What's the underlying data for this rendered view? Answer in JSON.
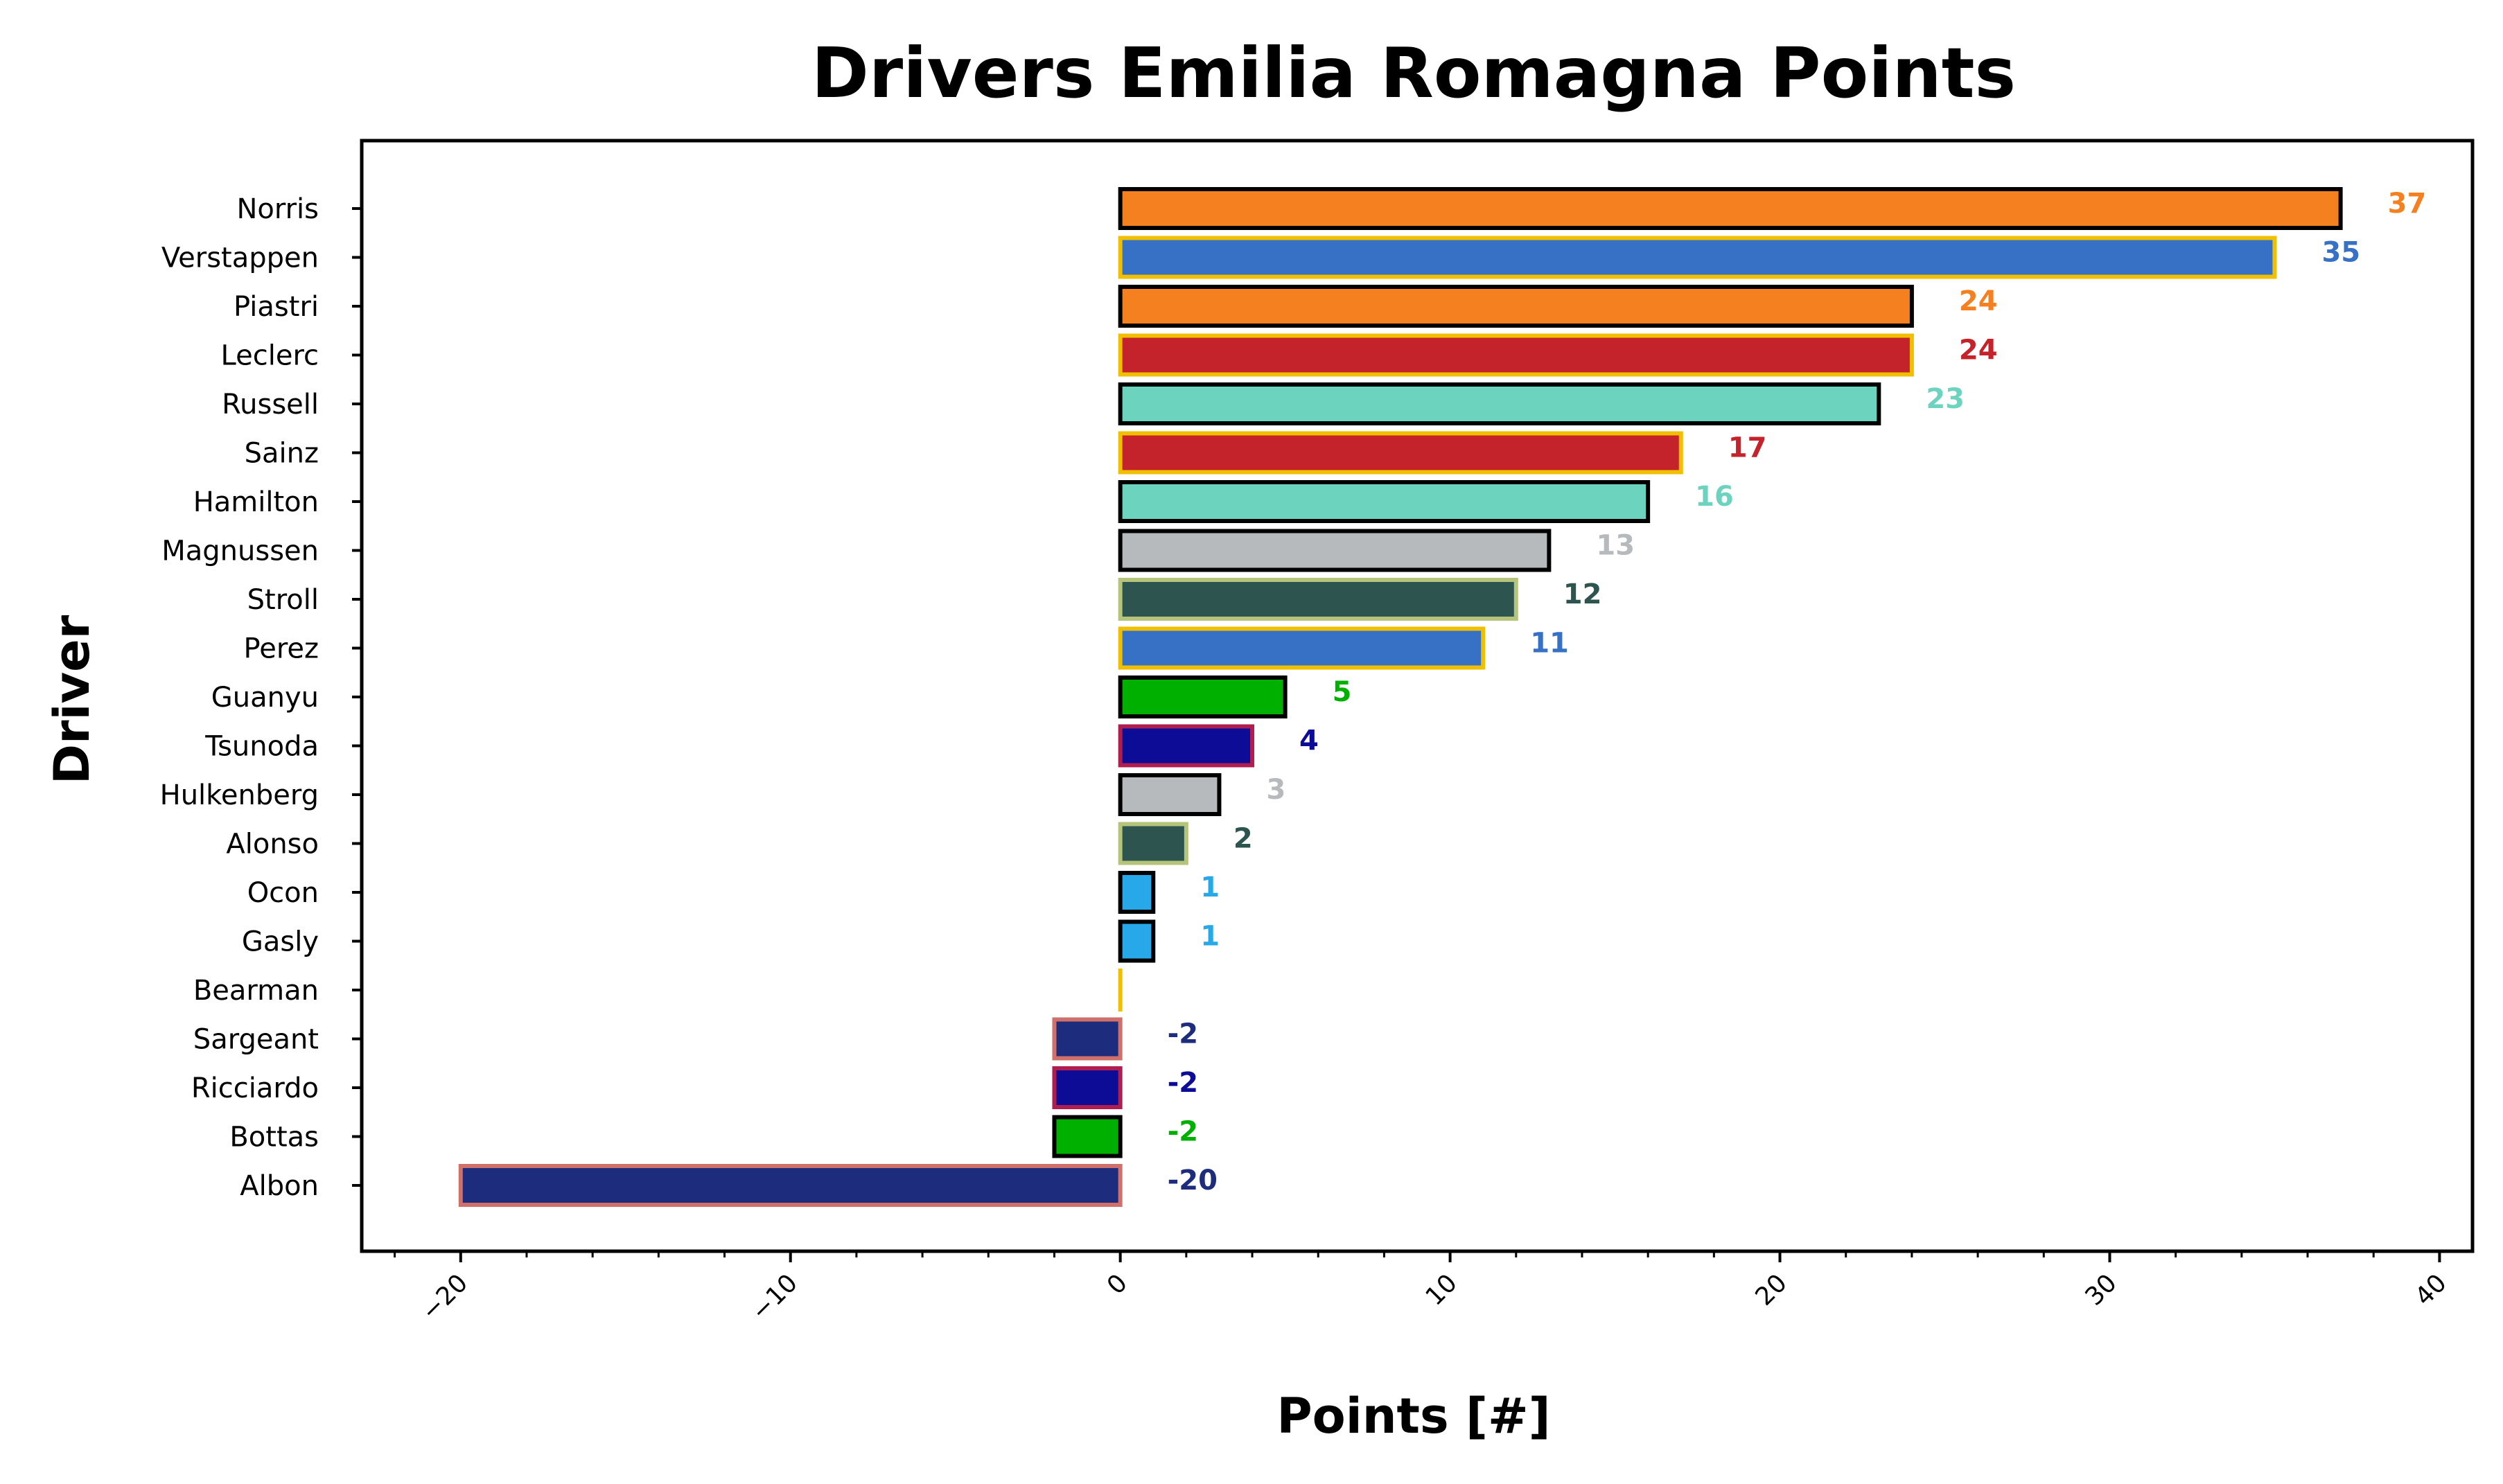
{
  "chart_data": {
    "type": "bar",
    "orientation": "horizontal",
    "title": "Drivers Emilia Romagna Points",
    "xlabel": "Points [#]",
    "ylabel": "Driver",
    "xlim": [
      -23,
      41
    ],
    "xticks": [
      -20,
      -10,
      0,
      10,
      20,
      30,
      40
    ],
    "xtick_labels": [
      "−20",
      "−10",
      "0",
      "10",
      "20",
      "30",
      "40"
    ],
    "minor_ticks": true,
    "grid": false,
    "legend": "none",
    "categories": [
      "Norris",
      "Verstappen",
      "Piastri",
      "Leclerc",
      "Russell",
      "Sainz",
      "Hamilton",
      "Magnussen",
      "Stroll",
      "Perez",
      "Guanyu",
      "Tsunoda",
      "Hulkenberg",
      "Alonso",
      "Ocon",
      "Gasly",
      "Bearman",
      "Sargeant",
      "Ricciardo",
      "Bottas",
      "Albon"
    ],
    "values": [
      37,
      35,
      24,
      24,
      23,
      17,
      16,
      13,
      12,
      11,
      5,
      4,
      3,
      2,
      1,
      1,
      0,
      -2,
      -2,
      -2,
      -20
    ],
    "value_labels": [
      "37",
      "35",
      "24",
      "24",
      "23",
      "17",
      "16",
      "13",
      "12",
      "11",
      "5",
      "4",
      "3",
      "2",
      "1",
      "1",
      "",
      "-2",
      "-2",
      "-2",
      "-20"
    ],
    "fill_colors": [
      "#F58020",
      "#3671C6",
      "#F58020",
      "#C4232C",
      "#6CD3BF",
      "#C4232C",
      "#6CD3BF",
      "#B6BABD",
      "#2D544F",
      "#3671C6",
      "#00B000",
      "#0C0C96",
      "#B6BABD",
      "#2D544F",
      "#27A8E8",
      "#27A8E8",
      "#E8C000",
      "#1E2C7E",
      "#0C0C96",
      "#00B000",
      "#1E2C7E"
    ],
    "edge_colors": [
      "#000000",
      "#F0C000",
      "#000000",
      "#F0C000",
      "#000000",
      "#F0C000",
      "#000000",
      "#000000",
      "#B5C47A",
      "#F0C000",
      "#000000",
      "#B01E50",
      "#000000",
      "#B5C47A",
      "#000000",
      "#000000",
      "#F0C000",
      "#D0706A",
      "#B01E50",
      "#000000",
      "#D0706A"
    ],
    "label_colors": [
      "#F58020",
      "#3671C6",
      "#F58020",
      "#C4232C",
      "#6CD3BF",
      "#C4232C",
      "#6CD3BF",
      "#B6BABD",
      "#2D544F",
      "#3671C6",
      "#00B000",
      "#0C0C96",
      "#B6BABD",
      "#2D544F",
      "#27A8E8",
      "#27A8E8",
      "#E8C000",
      "#1E2C7E",
      "#0C0C96",
      "#00B000",
      "#1E2C7E"
    ]
  }
}
